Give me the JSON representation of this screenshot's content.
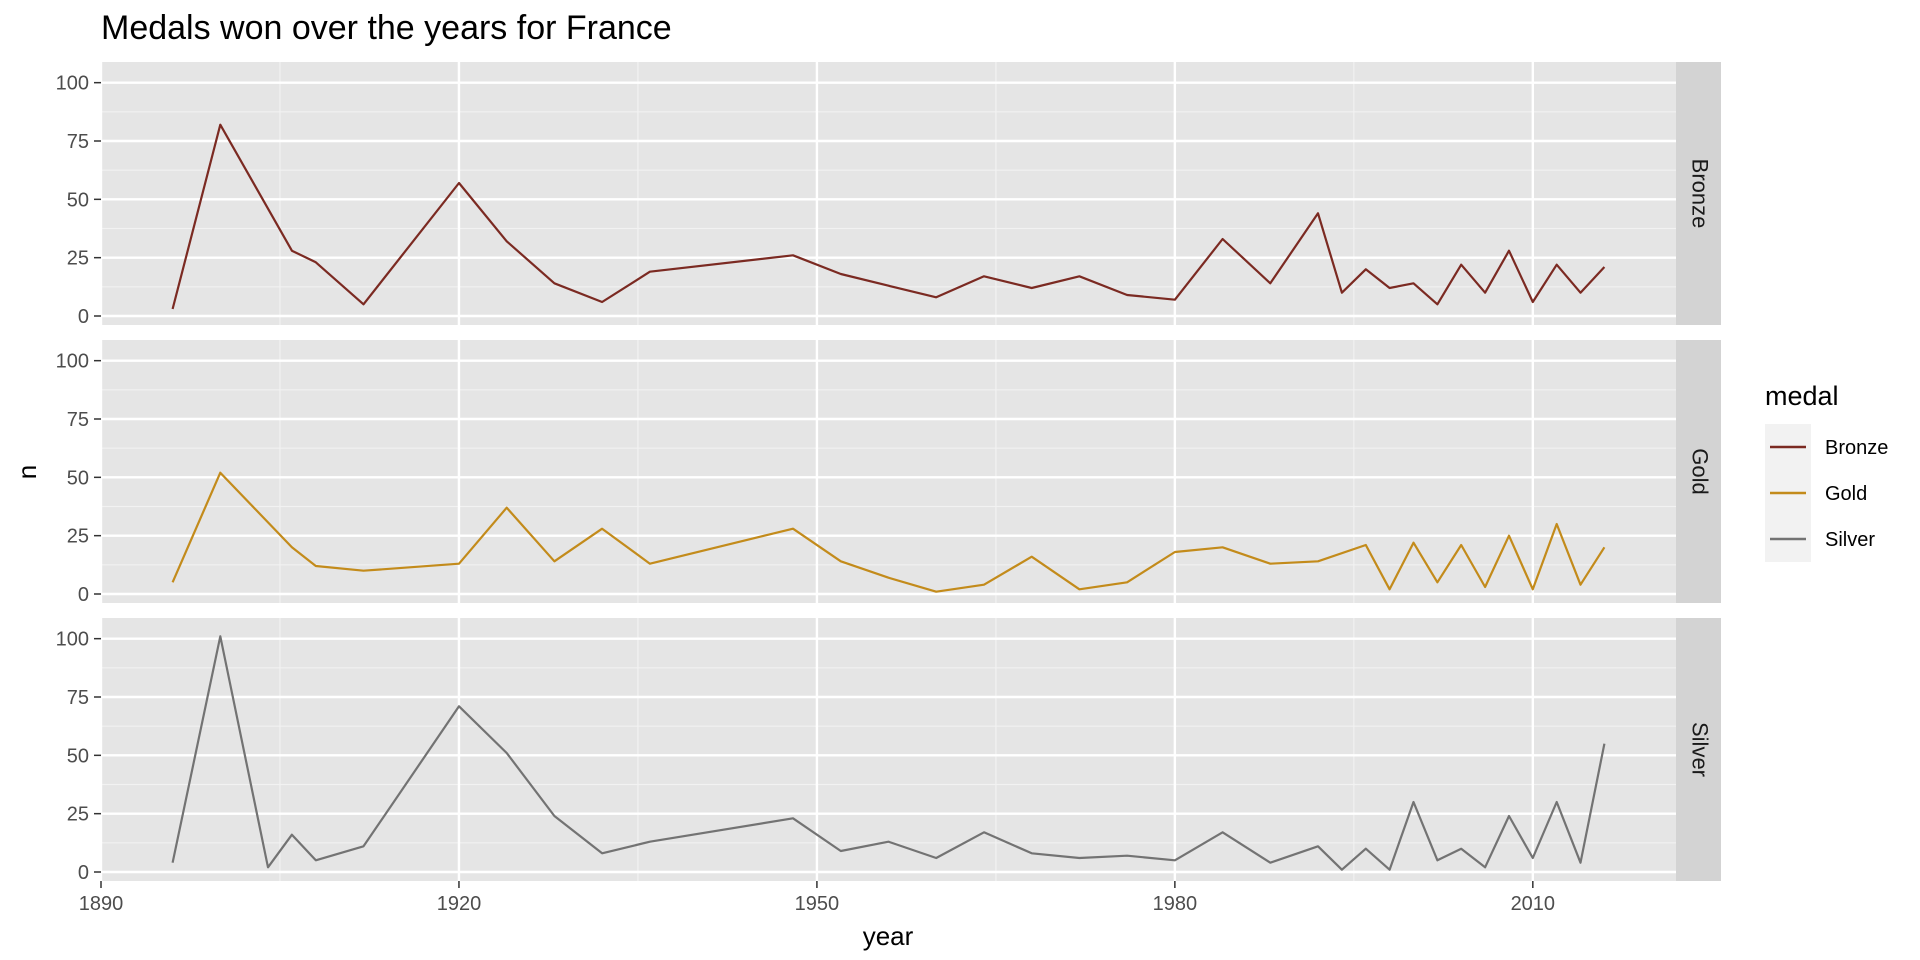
{
  "chart_data": {
    "type": "line",
    "title": "Medals won over the years for France",
    "xlabel": "year",
    "ylabel": "n",
    "xlim": [
      1890,
      2022
    ],
    "ylim": [
      0,
      105
    ],
    "x_ticks": [
      1890,
      1920,
      1950,
      1980,
      2010
    ],
    "y_ticks": [
      0,
      25,
      50,
      75,
      100
    ],
    "grid": true,
    "facets": "rows",
    "legend": {
      "title": "medal",
      "placement": "right",
      "entries": [
        "Bronze",
        "Gold",
        "Silver"
      ]
    },
    "series": [
      {
        "name": "Bronze",
        "color": "#7b2a22",
        "x": [
          1896,
          1900,
          1906,
          1908,
          1912,
          1920,
          1924,
          1928,
          1932,
          1936,
          1948,
          1952,
          1956,
          1960,
          1964,
          1968,
          1972,
          1976,
          1980,
          1984,
          1988,
          1992,
          1994,
          1996,
          1998,
          2000,
          2002,
          2004,
          2006,
          2008,
          2010,
          2012,
          2014,
          2016
        ],
        "values": [
          3,
          82,
          28,
          23,
          5,
          57,
          32,
          14,
          6,
          19,
          26,
          18,
          13,
          8,
          17,
          12,
          17,
          9,
          7,
          33,
          14,
          44,
          10,
          20,
          12,
          14,
          5,
          22,
          10,
          28,
          6,
          22,
          10,
          21
        ]
      },
      {
        "name": "Gold",
        "color": "#c38b1b",
        "x": [
          1896,
          1900,
          1906,
          1908,
          1912,
          1920,
          1924,
          1928,
          1932,
          1936,
          1948,
          1952,
          1956,
          1960,
          1964,
          1968,
          1972,
          1976,
          1980,
          1984,
          1988,
          1992,
          1996,
          1998,
          2000,
          2002,
          2004,
          2006,
          2008,
          2010,
          2012,
          2014,
          2016
        ],
        "values": [
          5,
          52,
          20,
          12,
          10,
          13,
          37,
          14,
          28,
          13,
          28,
          14,
          7,
          1,
          4,
          16,
          2,
          5,
          18,
          20,
          13,
          14,
          21,
          2,
          22,
          5,
          21,
          3,
          25,
          2,
          30,
          4,
          20
        ]
      },
      {
        "name": "Silver",
        "color": "#737373",
        "x": [
          1896,
          1900,
          1904,
          1906,
          1908,
          1912,
          1920,
          1924,
          1928,
          1932,
          1936,
          1948,
          1952,
          1956,
          1960,
          1964,
          1968,
          1972,
          1976,
          1980,
          1984,
          1988,
          1992,
          1994,
          1996,
          1998,
          2000,
          2002,
          2004,
          2006,
          2008,
          2010,
          2012,
          2014,
          2016
        ],
        "values": [
          4,
          101,
          2,
          16,
          5,
          11,
          71,
          51,
          24,
          8,
          13,
          23,
          9,
          13,
          6,
          17,
          8,
          6,
          7,
          5,
          17,
          4,
          11,
          1,
          10,
          1,
          30,
          5,
          10,
          2,
          24,
          6,
          30,
          4,
          55
        ]
      }
    ]
  }
}
